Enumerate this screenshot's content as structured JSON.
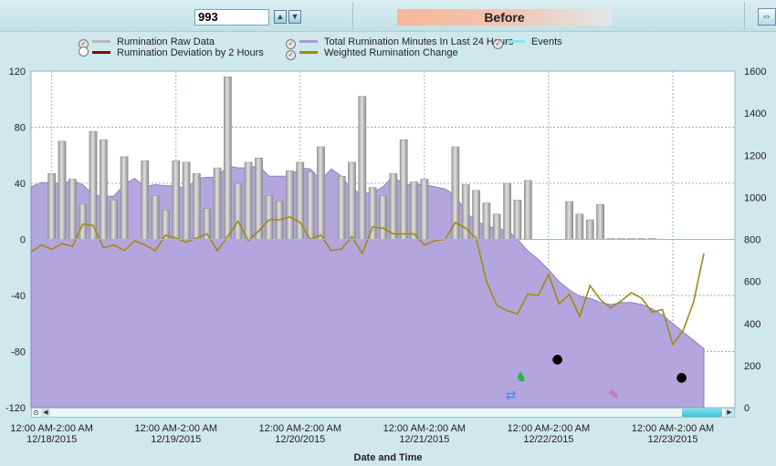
{
  "toolbar": {
    "cow_number": "993",
    "spin_up_icon": "triangle-up-icon",
    "spin_down_icon": "triangle-down-icon",
    "period_label": "Before",
    "fit_button_icon": "fit-view-icon"
  },
  "legend": [
    {
      "label": "Rumination Raw Data",
      "checked": true,
      "color": "#b8b8b8"
    },
    {
      "label": "Rumination Deviation by 2 Hours",
      "checked": false,
      "color": "#8b0000"
    },
    {
      "label": "Total Rumination Minutes In Last 24 Hours",
      "checked": true,
      "color": "#a99bd8"
    },
    {
      "label": "Weighted Rumination Change",
      "checked": true,
      "color": "#a08a10"
    },
    {
      "label": "Events",
      "checked": true,
      "color": "#80e8f0"
    }
  ],
  "chart_data": {
    "type": "bar+line+area",
    "xlabel": "Date and Time",
    "left_axis": {
      "ticks": [
        "120",
        "80",
        "40",
        "0",
        "-40",
        "-80",
        "-120"
      ],
      "ylim": [
        -120,
        120
      ]
    },
    "right_axis": {
      "ticks": [
        "1600",
        "1400",
        "1200",
        "1000",
        "800",
        "600",
        "400",
        "200",
        "0"
      ],
      "ylim": [
        0,
        1600
      ]
    },
    "x_ticks": [
      {
        "time": "12:00 AM-2:00 AM",
        "date": "12/18/2015"
      },
      {
        "time": "12:00 AM-2:00 AM",
        "date": "12/19/2015"
      },
      {
        "time": "12:00 AM-2:00 AM",
        "date": "12/20/2015"
      },
      {
        "time": "12:00 AM-2:00 AM",
        "date": "12/21/2015"
      },
      {
        "time": "12:00 AM-2:00 AM",
        "date": "12/22/2015"
      },
      {
        "time": "12:00 AM-2:00 AM",
        "date": "12/23/2015"
      }
    ],
    "x_range_hours": [
      -4,
      132
    ],
    "series": [
      {
        "name": "Rumination Raw Data",
        "kind": "bar",
        "axis": "left",
        "x_hours": [
          0,
          2,
          4,
          6,
          8,
          10,
          12,
          14,
          18,
          20,
          22,
          24,
          26,
          28,
          30,
          32,
          34,
          36,
          38,
          40,
          42,
          44,
          46,
          48,
          50,
          52,
          56,
          58,
          60,
          62,
          64,
          66,
          68,
          70,
          72,
          78,
          80,
          82,
          84,
          86,
          88,
          90,
          92,
          100,
          102,
          104,
          106,
          108,
          110,
          112,
          114,
          116
        ],
        "values": [
          47,
          70,
          43,
          25,
          77,
          71,
          28,
          59,
          56,
          31,
          21,
          56,
          55,
          47,
          22,
          51,
          116,
          40,
          55,
          58,
          31,
          27,
          49,
          55,
          48,
          66,
          45,
          55,
          102,
          37,
          31,
          47,
          71,
          41,
          43,
          66,
          39,
          35,
          26,
          18,
          40,
          28,
          42,
          27,
          18,
          14,
          25,
          0,
          0,
          0,
          0,
          0
        ]
      },
      {
        "name": "Total Rumination Minutes In Last 24 Hours",
        "kind": "area",
        "axis": "right",
        "x_hours": [
          -4,
          -2,
          0,
          2,
          4,
          6,
          8,
          10,
          12,
          14,
          16,
          18,
          20,
          22,
          24,
          26,
          28,
          30,
          32,
          34,
          36,
          38,
          40,
          42,
          44,
          46,
          48,
          50,
          52,
          54,
          56,
          58,
          60,
          62,
          64,
          66,
          68,
          70,
          72,
          74,
          76,
          78,
          80,
          82,
          84,
          86,
          88,
          90,
          92,
          94,
          96,
          98,
          100,
          102,
          104,
          106,
          108,
          110,
          112,
          114,
          116,
          118,
          120,
          122,
          124,
          126
        ],
        "values": [
          1050,
          1070,
          1070,
          1065,
          1080,
          1060,
          1010,
          1005,
          1005,
          1060,
          1090,
          1050,
          1060,
          1055,
          1055,
          1040,
          1090,
          1095,
          1095,
          1150,
          1140,
          1140,
          1150,
          1100,
          1100,
          1100,
          1140,
          1135,
          1080,
          1135,
          1100,
          1035,
          1020,
          1020,
          1050,
          1100,
          1060,
          1060,
          1060,
          1050,
          1040,
          1010,
          930,
          885,
          865,
          850,
          845,
          800,
          745,
          705,
          655,
          600,
          560,
          530,
          520,
          500,
          490,
          500,
          500,
          490,
          470,
          440,
          400,
          360,
          320,
          280
        ],
        "color": "#b3a6de"
      },
      {
        "name": "Weighted Rumination Change",
        "kind": "line",
        "axis": "left",
        "x_hours": [
          -4,
          -2,
          0,
          2,
          4,
          6,
          8,
          10,
          12,
          14,
          16,
          18,
          20,
          22,
          24,
          26,
          28,
          30,
          32,
          34,
          36,
          38,
          40,
          42,
          44,
          46,
          48,
          50,
          52,
          54,
          56,
          58,
          60,
          62,
          64,
          66,
          68,
          70,
          72,
          74,
          76,
          78,
          80,
          82,
          84,
          86,
          88,
          90,
          92,
          94,
          96,
          98,
          100,
          102,
          104,
          106,
          108,
          110,
          112,
          114,
          116,
          118,
          120,
          122,
          124,
          126
        ],
        "values": [
          -9,
          -4,
          -7,
          -3,
          -5,
          11,
          10,
          -6,
          -4,
          -8,
          -1,
          -4,
          -8,
          3,
          1,
          -2,
          1,
          4,
          -8,
          2,
          13,
          -1,
          6,
          14,
          14,
          16,
          12,
          0,
          3,
          -8,
          -7,
          2,
          -10,
          9,
          8,
          4,
          4,
          4,
          -4,
          -1,
          0,
          12,
          8,
          1,
          -30,
          -47,
          -51,
          -53,
          -39,
          -40,
          -25,
          -46,
          -39,
          -55,
          -33,
          -43,
          -49,
          -44,
          -38,
          -42,
          -52,
          -50,
          -75,
          -65,
          -45,
          -10
        ],
        "color": "#a08a10"
      }
    ],
    "events": [
      {
        "x_hours": 88.7,
        "icon": "pair-arrows-icon",
        "color": "#3a8ee0"
      },
      {
        "x_hours": 90.7,
        "icon": "stroller-icon",
        "color": "#22b14c"
      },
      {
        "x_hours": 97.7,
        "icon": "hoof-icon",
        "color": "#000000"
      },
      {
        "x_hours": 108.7,
        "icon": "syringe-icon",
        "color": "#e050a0"
      },
      {
        "x_hours": 121.7,
        "icon": "hoof-icon",
        "color": "#000000"
      }
    ],
    "grid": true
  }
}
